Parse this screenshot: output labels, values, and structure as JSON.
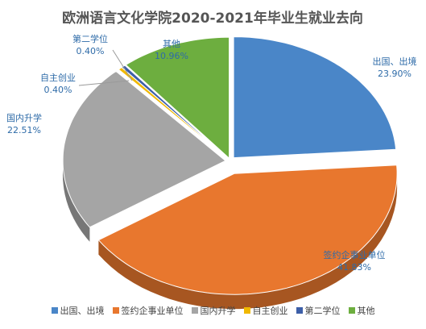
{
  "chart_data": {
    "type": "pie",
    "title": "欧洲语言文化学院2020-2021年毕业生就业去向",
    "categories": [
      "出国、出境",
      "签约企事业单位",
      "国内升学",
      "自主创业",
      "第二学位",
      "其他"
    ],
    "values": [
      23.9,
      41.83,
      22.51,
      0.4,
      0.4,
      10.96
    ],
    "value_labels": [
      "23.90%",
      "41.83%",
      "22.51%",
      "0.40%",
      "0.40%",
      "10.96%"
    ],
    "colors": [
      "#4A86C8",
      "#E8772E",
      "#A5A5A5",
      "#F0B800",
      "#3D5FA8",
      "#6DAE3F"
    ],
    "legend_position": "bottom",
    "style": "3d-exploded"
  }
}
